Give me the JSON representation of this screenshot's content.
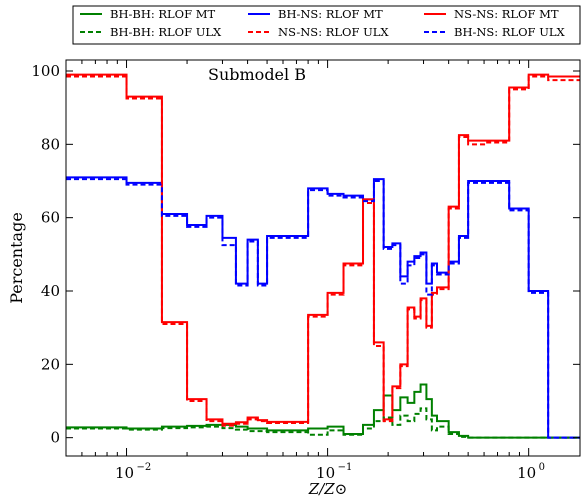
{
  "chart_data": {
    "type": "line",
    "title": "Submodel B",
    "xlabel": "Z/Z⊙",
    "ylabel": "Percentage",
    "x_scale": "log",
    "xlim": [
      0.005,
      1.8
    ],
    "ylim": [
      -5,
      103
    ],
    "x_ticks": [
      0.01,
      0.1,
      1.0
    ],
    "x_tick_labels": [
      {
        "base": "10",
        "exp": "−2"
      },
      {
        "base": "10",
        "exp": "−1"
      },
      {
        "base": "10",
        "exp": "0"
      }
    ],
    "y_ticks": [
      0,
      20,
      40,
      60,
      80,
      100
    ],
    "y_tick_labels": [
      "0",
      "20",
      "40",
      "60",
      "80",
      "100"
    ],
    "grid": false,
    "legend_position": "top, above plot (3 columns)",
    "legend_order": [
      0,
      3,
      1,
      4,
      2,
      5
    ],
    "series": [
      {
        "name": "BH-BH: RLOF MT",
        "color": "#008000",
        "style": "solid",
        "x": [
          0.005,
          0.008,
          0.01,
          0.015,
          0.02,
          0.025,
          0.03,
          0.035,
          0.04,
          0.045,
          0.05,
          0.06,
          0.08,
          0.1,
          0.12,
          0.15,
          0.17,
          0.19,
          0.21,
          0.23,
          0.25,
          0.27,
          0.29,
          0.31,
          0.33,
          0.35,
          0.4,
          0.45,
          0.5,
          0.6,
          0.8,
          1.0,
          1.25,
          1.5,
          1.8
        ],
        "y": [
          2.8,
          2.8,
          2.5,
          3.0,
          3.2,
          3.5,
          3.5,
          3.0,
          2.5,
          2.5,
          2.0,
          2.0,
          2.5,
          3.0,
          1.0,
          3.5,
          7.5,
          11.5,
          7.5,
          11.0,
          9.5,
          12.5,
          14.5,
          10.5,
          6.0,
          4.5,
          1.5,
          0.5,
          0.0,
          0.0,
          0.0,
          0.0,
          0.0,
          0.0,
          0.0
        ]
      },
      {
        "name": "BH-NS: RLOF MT",
        "color": "#0000ff",
        "style": "solid",
        "x": [
          0.005,
          0.008,
          0.01,
          0.015,
          0.02,
          0.025,
          0.03,
          0.035,
          0.04,
          0.045,
          0.05,
          0.06,
          0.08,
          0.1,
          0.12,
          0.15,
          0.17,
          0.19,
          0.21,
          0.23,
          0.25,
          0.27,
          0.29,
          0.31,
          0.33,
          0.35,
          0.4,
          0.45,
          0.5,
          0.6,
          0.8,
          1.0,
          1.25,
          1.5,
          1.8
        ],
        "y": [
          71.0,
          71.0,
          69.5,
          61.0,
          58.0,
          60.5,
          54.5,
          42.0,
          54.0,
          42.0,
          55.0,
          55.0,
          68.0,
          66.5,
          66.0,
          65.0,
          70.5,
          52.0,
          53.0,
          44.0,
          48.0,
          49.5,
          50.5,
          42.0,
          47.5,
          45.0,
          48.0,
          55.0,
          70.0,
          70.0,
          62.5,
          40.0,
          0.0,
          0.0,
          0.0
        ]
      },
      {
        "name": "NS-NS: RLOF MT",
        "color": "#ff0000",
        "style": "solid",
        "x": [
          0.005,
          0.008,
          0.01,
          0.015,
          0.02,
          0.025,
          0.03,
          0.035,
          0.04,
          0.045,
          0.05,
          0.06,
          0.08,
          0.1,
          0.12,
          0.15,
          0.17,
          0.19,
          0.21,
          0.23,
          0.25,
          0.27,
          0.29,
          0.31,
          0.33,
          0.35,
          0.4,
          0.45,
          0.5,
          0.6,
          0.8,
          1.0,
          1.25,
          1.5,
          1.8
        ],
        "y": [
          99.0,
          99.0,
          93.0,
          31.5,
          10.5,
          5.0,
          3.8,
          4.2,
          5.5,
          4.8,
          4.3,
          4.3,
          33.5,
          39.5,
          47.5,
          65.0,
          26.0,
          5.0,
          14.0,
          20.0,
          35.5,
          33.0,
          38.0,
          30.5,
          39.5,
          41.0,
          63.0,
          82.5,
          81.0,
          81.0,
          95.5,
          99.0,
          98.5,
          98.5,
          98.5
        ]
      },
      {
        "name": "BH-BH: RLOF ULX",
        "color": "#008000",
        "style": "dashed",
        "x": [
          0.005,
          0.008,
          0.01,
          0.015,
          0.02,
          0.025,
          0.03,
          0.035,
          0.04,
          0.045,
          0.05,
          0.06,
          0.08,
          0.1,
          0.12,
          0.15,
          0.17,
          0.19,
          0.21,
          0.23,
          0.25,
          0.27,
          0.29,
          0.31,
          0.33,
          0.35,
          0.4,
          0.45,
          0.5,
          0.6,
          0.8,
          1.0,
          1.25,
          1.5,
          1.8
        ],
        "y": [
          2.5,
          2.5,
          2.2,
          2.6,
          2.8,
          3.0,
          2.6,
          2.2,
          1.8,
          1.8,
          1.5,
          1.5,
          0.8,
          2.0,
          0.8,
          2.5,
          4.5,
          5.5,
          3.5,
          6.0,
          4.5,
          6.5,
          8.0,
          5.0,
          2.0,
          3.0,
          1.0,
          0.2,
          0.0,
          0.0,
          0.0,
          0.0,
          0.0,
          0.0,
          0.0
        ]
      },
      {
        "name": "NS-NS: RLOF ULX",
        "color": "#ff0000",
        "style": "dashed",
        "x": [
          0.005,
          0.008,
          0.01,
          0.015,
          0.02,
          0.025,
          0.03,
          0.035,
          0.04,
          0.045,
          0.05,
          0.06,
          0.08,
          0.1,
          0.12,
          0.15,
          0.17,
          0.19,
          0.21,
          0.23,
          0.25,
          0.27,
          0.29,
          0.31,
          0.33,
          0.35,
          0.4,
          0.45,
          0.5,
          0.6,
          0.8,
          1.0,
          1.25,
          1.5,
          1.8
        ],
        "y": [
          98.5,
          98.5,
          92.5,
          31.0,
          10.0,
          4.5,
          3.3,
          3.8,
          5.0,
          4.5,
          4.0,
          4.0,
          33.0,
          39.0,
          47.0,
          64.0,
          25.0,
          4.5,
          13.5,
          19.5,
          35.0,
          32.5,
          37.5,
          30.0,
          39.0,
          40.5,
          62.5,
          82.0,
          80.0,
          80.5,
          95.0,
          98.5,
          97.5,
          97.5,
          97.5
        ]
      },
      {
        "name": "BH-NS: RLOF ULX",
        "color": "#0000ff",
        "style": "dashed",
        "x": [
          0.005,
          0.008,
          0.01,
          0.015,
          0.02,
          0.025,
          0.03,
          0.035,
          0.04,
          0.045,
          0.05,
          0.06,
          0.08,
          0.1,
          0.12,
          0.15,
          0.17,
          0.19,
          0.21,
          0.23,
          0.25,
          0.27,
          0.29,
          0.31,
          0.33,
          0.35,
          0.4,
          0.45,
          0.5,
          0.6,
          0.8,
          1.0,
          1.25,
          1.5,
          1.8
        ],
        "y": [
          70.5,
          70.5,
          69.0,
          60.5,
          57.5,
          60.0,
          52.5,
          41.5,
          53.5,
          41.5,
          54.5,
          54.5,
          67.5,
          66.0,
          65.5,
          64.5,
          70.0,
          51.5,
          52.5,
          42.0,
          47.0,
          49.0,
          50.0,
          39.0,
          47.0,
          44.5,
          47.5,
          54.5,
          69.5,
          69.5,
          62.0,
          39.5,
          0.0,
          0.0,
          0.0
        ]
      }
    ]
  }
}
